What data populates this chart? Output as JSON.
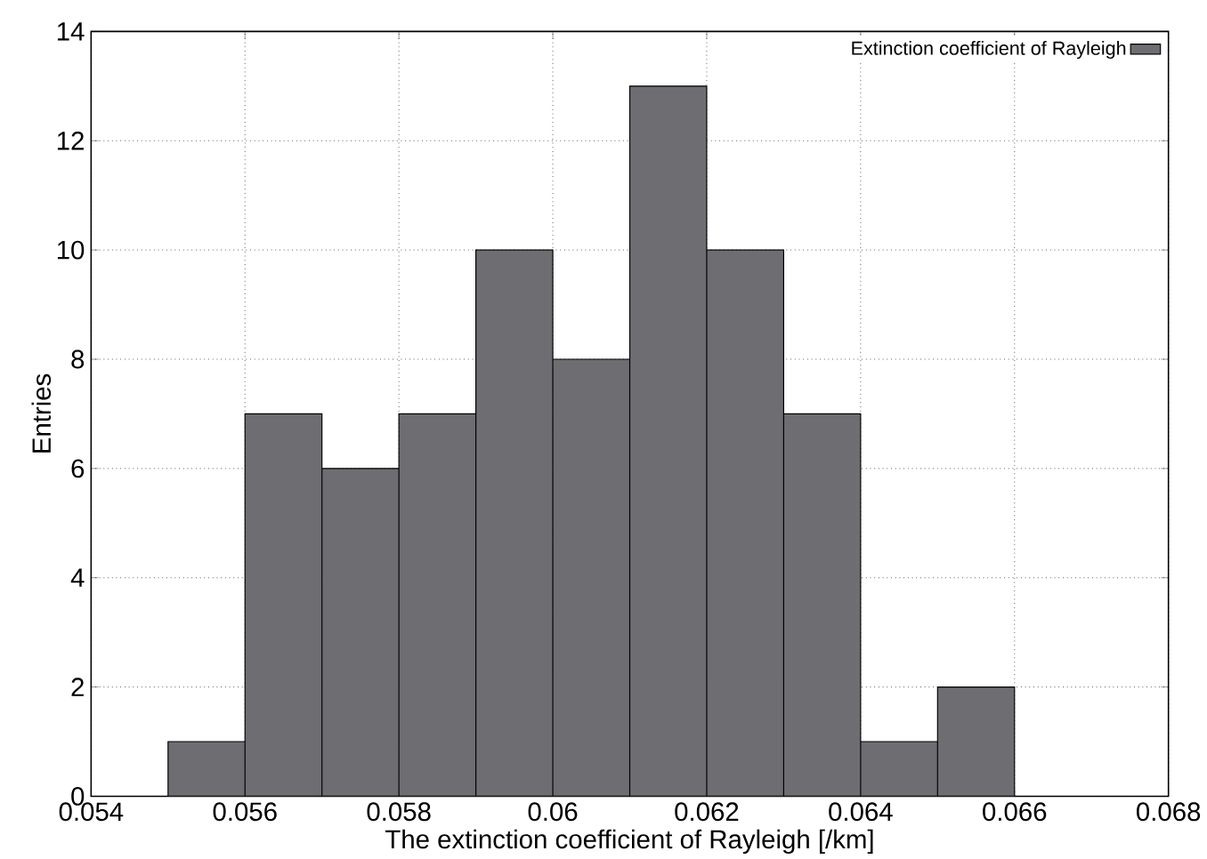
{
  "chart_data": {
    "type": "histogram",
    "xlabel": "The extinction coefficient of Rayleigh [/km]",
    "ylabel": "Entries",
    "bins": [
      0.055,
      0.056,
      0.057,
      0.058,
      0.059,
      0.06,
      0.061,
      0.062,
      0.063,
      0.064,
      0.065,
      0.066
    ],
    "series": [
      {
        "name": "Extinction coefficient of Rayleigh",
        "color": "#6d6d72",
        "values": [
          1,
          7,
          6,
          7,
          10,
          8,
          13,
          10,
          7,
          1,
          2
        ]
      }
    ],
    "xlim": [
      0.054,
      0.068
    ],
    "xticks": [
      0.054,
      0.056,
      0.058,
      0.06,
      0.062,
      0.064,
      0.066,
      0.068
    ],
    "ylim": [
      0,
      14
    ],
    "yticks": [
      0,
      2,
      4,
      6,
      8,
      10,
      12,
      14
    ],
    "grid": true,
    "legend": "top right"
  }
}
